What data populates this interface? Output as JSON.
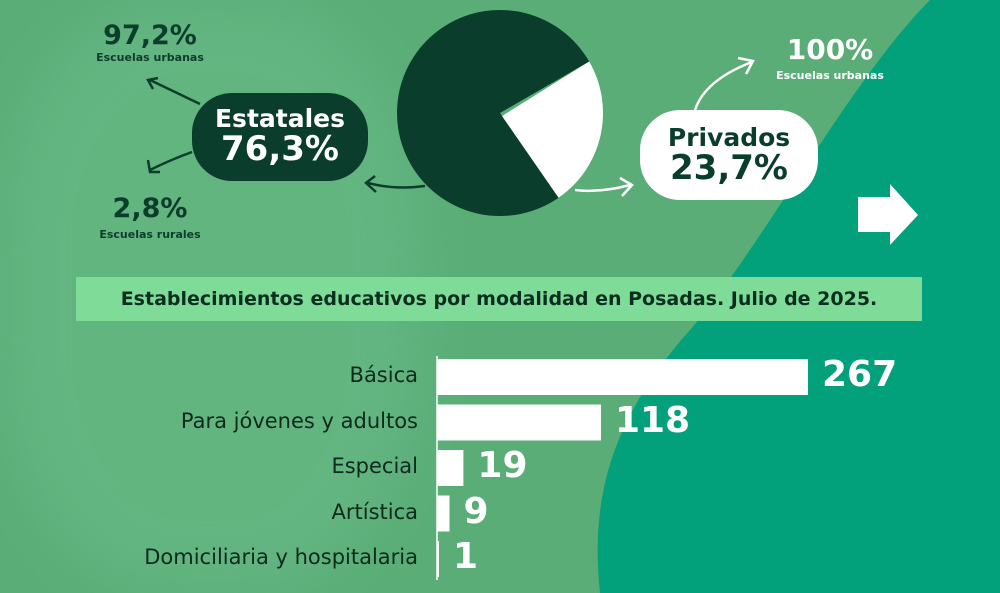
{
  "colors": {
    "background": "#5aad77",
    "teal": "#03a07c",
    "dark": "#0a3d2b",
    "white": "#ffffff",
    "title_bar": "#7fdc98"
  },
  "state": {
    "label": "Estatales",
    "value": "76,3%",
    "urban_pct": "97,2%",
    "urban_label": "Escuelas urbanas",
    "rural_pct": "2,8%",
    "rural_label": "Escuelas rurales"
  },
  "private": {
    "label": "Privados",
    "value": "23,7%",
    "urban_pct": "100%",
    "urban_label": "Escuelas urbanas"
  },
  "chart_data": [
    {
      "type": "pie",
      "categories": [
        "Estatales",
        "Privados"
      ],
      "values": [
        76.3,
        23.7
      ]
    },
    {
      "type": "bar",
      "orientation": "horizontal",
      "title": "Establecimientos educativos por modalidad en Posadas. Julio de 2025.",
      "categories": [
        "Básica",
        "Para jóvenes y adultos",
        "Especial",
        "Artística",
        "Domiciliaria y hospitalaria"
      ],
      "values": [
        267,
        118,
        19,
        9,
        1
      ],
      "labels": [
        "267",
        "118",
        "19",
        "9",
        "1"
      ]
    }
  ]
}
